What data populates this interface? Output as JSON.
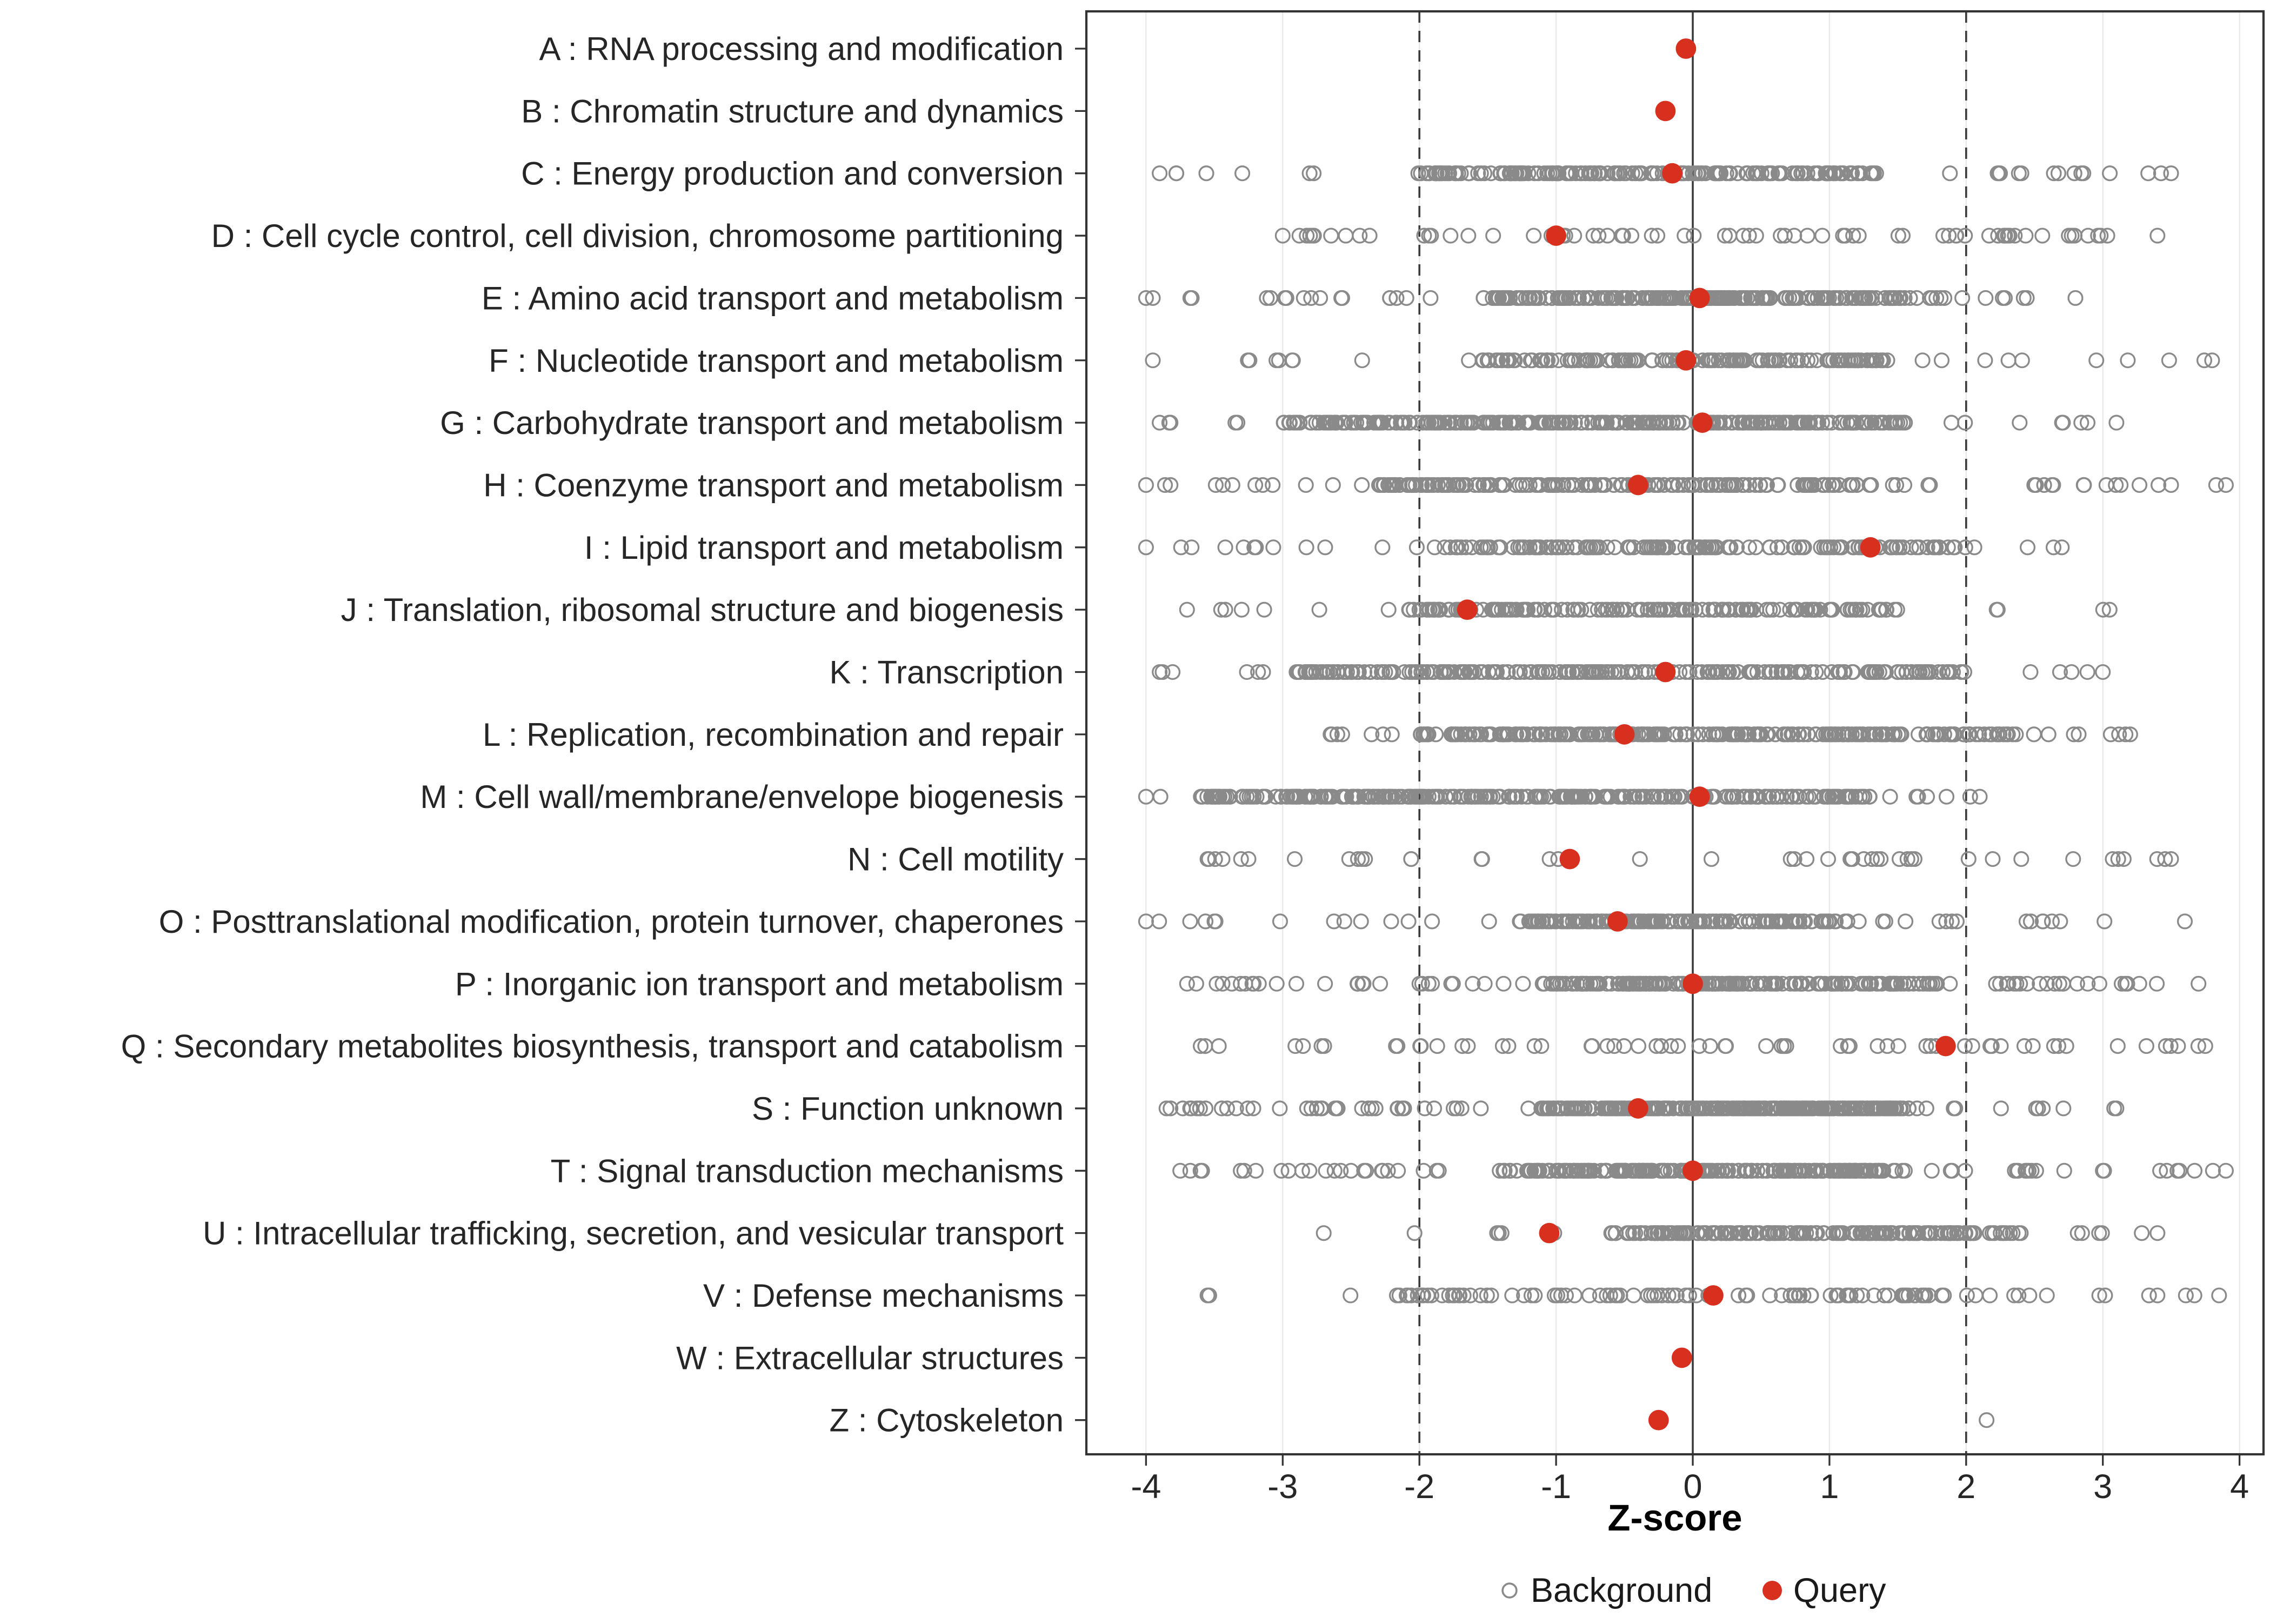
{
  "chart_data": {
    "type": "scatter",
    "title": "",
    "xlabel": "Z-score",
    "x_ticks": [
      -4,
      -3,
      -2,
      -1,
      0,
      1,
      2,
      3,
      4
    ],
    "xlim": [
      -4.45,
      4.2
    ],
    "grid": true,
    "reference_lines": {
      "solid": [
        0
      ],
      "dashed": [
        -2,
        2
      ]
    },
    "legend": {
      "position": "bottom",
      "items": [
        {
          "label": "Background",
          "marker": "open-gray-circle"
        },
        {
          "label": "Query",
          "marker": "filled-red-circle"
        }
      ]
    },
    "colors": {
      "query": "#D7301F",
      "background_stroke": "#8A8A8A",
      "grid": "#E8E8E8",
      "refline": "#3C3C3C",
      "panel_border": "#333333",
      "text": "#262626"
    },
    "categories": [
      {
        "code": "A",
        "label": "A : RNA processing and modification",
        "query_z": -0.05,
        "background": {
          "n": 0
        }
      },
      {
        "code": "B",
        "label": "B : Chromatin structure and dynamics",
        "query_z": -0.2,
        "background": {
          "n": 0
        }
      },
      {
        "code": "C",
        "label": "C : Energy production and conversion",
        "query_z": -0.15,
        "background": {
          "n": 210,
          "range": [
            -3.9,
            3.5
          ],
          "dense": [
            -2.05,
            1.35
          ],
          "tail": 0.22
        }
      },
      {
        "code": "D",
        "label": "D : Cell cycle control, cell division, chromosome partitioning",
        "query_z": -1.0,
        "background": {
          "n": 70,
          "range": [
            -3.0,
            3.4
          ],
          "dense": [
            -3.0,
            3.0
          ],
          "tail": 0.15
        }
      },
      {
        "code": "E",
        "label": "E : Amino acid transport and metabolism",
        "query_z": 0.05,
        "background": {
          "n": 260,
          "range": [
            -4.0,
            2.8
          ],
          "dense": [
            -1.45,
            1.6
          ],
          "tail": 0.22
        }
      },
      {
        "code": "F",
        "label": "F : Nucleotide transport and metabolism",
        "query_z": -0.05,
        "background": {
          "n": 170,
          "range": [
            -3.95,
            3.8
          ],
          "dense": [
            -1.6,
            1.4
          ],
          "tail": 0.25
        }
      },
      {
        "code": "G",
        "label": "G : Carbohydrate transport and metabolism",
        "query_z": 0.07,
        "background": {
          "n": 330,
          "range": [
            -3.9,
            3.1
          ],
          "dense": [
            -3.0,
            1.5
          ],
          "tail": 0.12
        }
      },
      {
        "code": "H",
        "label": "H : Coenzyme transport and metabolism",
        "query_z": -0.4,
        "background": {
          "n": 200,
          "range": [
            -4.0,
            3.9
          ],
          "dense": [
            -2.3,
            1.2
          ],
          "tail": 0.2
        }
      },
      {
        "code": "I",
        "label": "I : Lipid transport and metabolism",
        "query_z": 1.3,
        "background": {
          "n": 170,
          "range": [
            -4.0,
            2.7
          ],
          "dense": [
            -1.75,
            2.0
          ],
          "tail": 0.22
        }
      },
      {
        "code": "J",
        "label": "J : Translation, ribosomal structure and biogenesis",
        "query_z": -1.65,
        "background": {
          "n": 180,
          "range": [
            -3.7,
            3.05
          ],
          "dense": [
            -2.1,
            1.5
          ],
          "tail": 0.15
        }
      },
      {
        "code": "K",
        "label": "K : Transcription",
        "query_z": -0.2,
        "background": {
          "n": 270,
          "range": [
            -3.9,
            3.0
          ],
          "dense": [
            -2.9,
            2.0
          ],
          "tail": 0.12
        }
      },
      {
        "code": "L",
        "label": "L : Replication, recombination and repair",
        "query_z": -0.5,
        "background": {
          "n": 270,
          "range": [
            -2.65,
            3.2
          ],
          "dense": [
            -2.0,
            2.4
          ],
          "tail": 0.12
        }
      },
      {
        "code": "M",
        "label": "M : Cell wall/membrane/envelope biogenesis",
        "query_z": 0.05,
        "background": {
          "n": 310,
          "range": [
            -4.0,
            2.1
          ],
          "dense": [
            -3.6,
            1.3
          ],
          "tail": 0.1
        }
      },
      {
        "code": "N",
        "label": "N : Cell motility",
        "query_z": -0.9,
        "background": {
          "n": 45,
          "range": [
            -3.55,
            3.5
          ],
          "dense": [
            -3.55,
            3.5
          ],
          "tail": 0
        }
      },
      {
        "code": "O",
        "label": "O : Posttranslational modification, protein turnover, chaperones",
        "query_z": -0.55,
        "background": {
          "n": 220,
          "range": [
            -4.0,
            3.6
          ],
          "dense": [
            -1.3,
            1.05
          ],
          "tail": 0.3
        }
      },
      {
        "code": "P",
        "label": "P : Inorganic ion transport and metabolism",
        "query_z": 0.0,
        "background": {
          "n": 250,
          "range": [
            -3.7,
            3.7
          ],
          "dense": [
            -1.1,
            1.8
          ],
          "tail": 0.25
        }
      },
      {
        "code": "Q",
        "label": "Q : Secondary metabolites biosynthesis, transport and catabolism",
        "query_z": 1.85,
        "background": {
          "n": 62,
          "range": [
            -3.6,
            3.75
          ],
          "dense": [
            -3.6,
            3.75
          ],
          "tail": 0
        }
      },
      {
        "code": "S",
        "label": "S : Function unknown",
        "query_z": -0.4,
        "background": {
          "n": 330,
          "range": [
            -3.85,
            3.1
          ],
          "dense": [
            -1.1,
            1.6
          ],
          "tail": 0.22
        }
      },
      {
        "code": "T",
        "label": "T : Signal transduction mechanisms",
        "query_z": 0.0,
        "background": {
          "n": 270,
          "range": [
            -3.75,
            3.9
          ],
          "dense": [
            -1.3,
            1.4
          ],
          "tail": 0.25
        }
      },
      {
        "code": "U",
        "label": "U : Intracellular trafficking, secretion, and vesicular transport",
        "query_z": -1.05,
        "background": {
          "n": 200,
          "range": [
            -2.7,
            3.4
          ],
          "dense": [
            -0.6,
            2.4
          ],
          "tail": 0.15
        }
      },
      {
        "code": "V",
        "label": "V : Defense mechanisms",
        "query_z": 0.15,
        "background": {
          "n": 110,
          "range": [
            -3.55,
            3.85
          ],
          "dense": [
            -2.1,
            1.85
          ],
          "tail": 0.3
        }
      },
      {
        "code": "W",
        "label": "W : Extracellular structures",
        "query_z": -0.08,
        "background": {
          "n": 0
        }
      },
      {
        "code": "Z",
        "label": "Z : Cytoskeleton",
        "query_z": -0.25,
        "background": {
          "n": 1,
          "range": [
            2.15,
            2.15
          ]
        }
      }
    ]
  }
}
